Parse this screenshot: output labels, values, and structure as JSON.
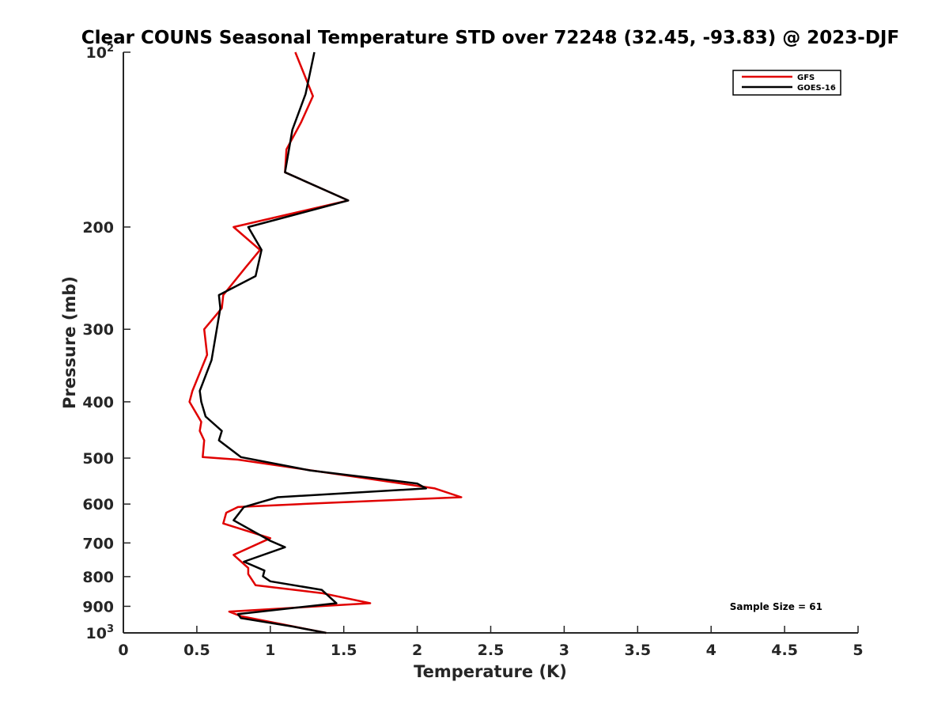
{
  "chart_data": {
    "type": "line",
    "title": "Clear COUNS Seasonal Temperature STD over 72248 (32.45, -93.83) @ 2023-DJF",
    "xlabel": "Temperature (K)",
    "ylabel": "Pressure (mb)",
    "xlim": [
      0,
      5
    ],
    "ylim": [
      1000,
      100
    ],
    "yscale": "log",
    "y_reversed": true,
    "x_ticks": [
      0,
      0.5,
      1,
      1.5,
      2,
      2.5,
      3,
      3.5,
      4,
      4.5,
      5
    ],
    "x_tick_labels": [
      "0",
      "0.5",
      "1",
      "1.5",
      "2",
      "2.5",
      "3",
      "3.5",
      "4",
      "4.5",
      "5"
    ],
    "y_ticks": [
      100,
      200,
      300,
      400,
      500,
      600,
      700,
      800,
      900,
      1000
    ],
    "y_tick_labels": [
      "10^2",
      "200",
      "300",
      "400",
      "500",
      "600",
      "700",
      "800",
      "900",
      "10^3"
    ],
    "legend_position": "top-right",
    "annotation": "Sample Size = 61",
    "series": [
      {
        "name": "GFS",
        "color": "#e00000",
        "x": [
          1.17,
          1.29,
          1.21,
          1.11,
          1.1,
          1.53,
          0.75,
          0.93,
          0.83,
          0.68,
          0.67,
          0.55,
          0.57,
          0.47,
          0.45,
          0.53,
          0.52,
          0.55,
          0.54,
          0.78,
          2.12,
          2.3,
          1.33,
          0.78,
          0.7,
          0.68,
          1.0,
          0.75,
          0.85,
          0.85,
          0.9,
          1.35,
          1.68,
          0.72,
          0.8,
          1.38
        ],
        "y": [
          100,
          119,
          132,
          147,
          161,
          180,
          200,
          219,
          235,
          262,
          276,
          300,
          332,
          383,
          400,
          433,
          449,
          466,
          498,
          503,
          564,
          584,
          598,
          607,
          621,
          648,
          687,
          734,
          773,
          792,
          828,
          854,
          889,
          919,
          936,
          1000
        ]
      },
      {
        "name": "GOES-16",
        "color": "#000000",
        "x": [
          1.3,
          1.24,
          1.15,
          1.1,
          1.53,
          0.85,
          0.94,
          0.9,
          0.65,
          0.66,
          0.6,
          0.52,
          0.53,
          0.56,
          0.67,
          0.65,
          0.8,
          1.27,
          2.0,
          2.06,
          1.05,
          0.82,
          0.75,
          1.0,
          1.1,
          0.82,
          0.96,
          0.95,
          1.0,
          1.35,
          1.45,
          0.78,
          0.8,
          1.15,
          1.38
        ],
        "y": [
          100,
          118,
          136,
          161,
          180,
          200,
          219,
          243,
          262,
          276,
          339,
          383,
          400,
          424,
          449,
          466,
          498,
          525,
          553,
          564,
          584,
          607,
          640,
          694,
          712,
          754,
          781,
          799,
          815,
          843,
          889,
          928,
          943,
          975,
          1000
        ]
      }
    ]
  }
}
